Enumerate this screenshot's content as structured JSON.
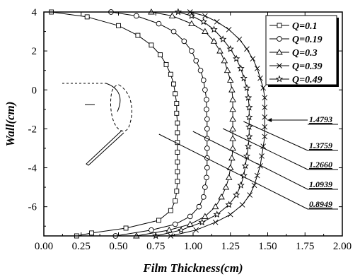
{
  "chart_data": {
    "type": "line",
    "xlabel": "Film Thickness(cm)",
    "ylabel": "Wall(cm)",
    "xlim": [
      0.0,
      2.0
    ],
    "ylim": [
      -7.5,
      4.0
    ],
    "x_ticks": [
      "0.00",
      "0.25",
      "0.50",
      "0.75",
      "1.00",
      "1.25",
      "1.50",
      "1.75",
      "2.00"
    ],
    "y_ticks": [
      "4",
      "2",
      "0",
      "-2",
      "-4",
      "-6"
    ],
    "legend_position": "top-right",
    "series": [
      {
        "name": "Q=0.1",
        "marker": "square",
        "peak": 0.8949,
        "points": [
          [
            0.05,
            4.0
          ],
          [
            0.29,
            3.75
          ],
          [
            0.5,
            3.3
          ],
          [
            0.63,
            2.8
          ],
          [
            0.72,
            2.3
          ],
          [
            0.78,
            1.8
          ],
          [
            0.82,
            1.3
          ],
          [
            0.85,
            0.8
          ],
          [
            0.87,
            0.3
          ],
          [
            0.88,
            -0.2
          ],
          [
            0.89,
            -0.7
          ],
          [
            0.89,
            -1.2
          ],
          [
            0.895,
            -1.7
          ],
          [
            0.895,
            -2.2
          ],
          [
            0.895,
            -2.7
          ],
          [
            0.895,
            -3.2
          ],
          [
            0.895,
            -3.7
          ],
          [
            0.895,
            -4.2
          ],
          [
            0.895,
            -4.7
          ],
          [
            0.89,
            -5.2
          ],
          [
            0.88,
            -5.7
          ],
          [
            0.85,
            -6.2
          ],
          [
            0.77,
            -6.7
          ],
          [
            0.55,
            -7.1
          ],
          [
            0.32,
            -7.35
          ],
          [
            0.22,
            -7.5
          ]
        ]
      },
      {
        "name": "Q=0.19",
        "marker": "circle",
        "peak": 1.0939,
        "points": [
          [
            0.45,
            4.0
          ],
          [
            0.62,
            3.8
          ],
          [
            0.77,
            3.4
          ],
          [
            0.87,
            3.0
          ],
          [
            0.94,
            2.5
          ],
          [
            0.99,
            2.0
          ],
          [
            1.02,
            1.5
          ],
          [
            1.05,
            1.0
          ],
          [
            1.07,
            0.5
          ],
          [
            1.08,
            0.0
          ],
          [
            1.09,
            -0.5
          ],
          [
            1.09,
            -1.0
          ],
          [
            1.094,
            -1.5
          ],
          [
            1.094,
            -2.0
          ],
          [
            1.094,
            -2.5
          ],
          [
            1.094,
            -3.0
          ],
          [
            1.094,
            -3.5
          ],
          [
            1.094,
            -4.0
          ],
          [
            1.09,
            -4.5
          ],
          [
            1.08,
            -5.0
          ],
          [
            1.07,
            -5.5
          ],
          [
            1.04,
            -6.0
          ],
          [
            0.98,
            -6.5
          ],
          [
            0.88,
            -6.9
          ],
          [
            0.72,
            -7.2
          ],
          [
            0.48,
            -7.5
          ]
        ]
      },
      {
        "name": "Q=0.3",
        "marker": "triangle",
        "peak": 1.266,
        "points": [
          [
            0.72,
            4.0
          ],
          [
            0.86,
            3.8
          ],
          [
            0.99,
            3.4
          ],
          [
            1.08,
            3.0
          ],
          [
            1.14,
            2.5
          ],
          [
            1.18,
            2.0
          ],
          [
            1.21,
            1.5
          ],
          [
            1.23,
            1.0
          ],
          [
            1.25,
            0.5
          ],
          [
            1.26,
            0.0
          ],
          [
            1.266,
            -0.5
          ],
          [
            1.266,
            -1.0
          ],
          [
            1.266,
            -1.5
          ],
          [
            1.266,
            -2.0
          ],
          [
            1.266,
            -2.5
          ],
          [
            1.266,
            -3.0
          ],
          [
            1.26,
            -3.5
          ],
          [
            1.25,
            -4.0
          ],
          [
            1.24,
            -4.5
          ],
          [
            1.22,
            -5.0
          ],
          [
            1.19,
            -5.5
          ],
          [
            1.15,
            -6.0
          ],
          [
            1.08,
            -6.5
          ],
          [
            0.98,
            -6.9
          ],
          [
            0.84,
            -7.2
          ],
          [
            0.62,
            -7.5
          ]
        ]
      },
      {
        "name": "Q=0.39",
        "marker": "cross",
        "peak": 1.4793,
        "points": [
          [
            0.98,
            4.0
          ],
          [
            1.08,
            3.8
          ],
          [
            1.16,
            3.5
          ],
          [
            1.24,
            3.1
          ],
          [
            1.31,
            2.6
          ],
          [
            1.36,
            2.1
          ],
          [
            1.4,
            1.6
          ],
          [
            1.43,
            1.1
          ],
          [
            1.45,
            0.6
          ],
          [
            1.47,
            0.1
          ],
          [
            1.48,
            -0.4
          ],
          [
            1.48,
            -0.9
          ],
          [
            1.48,
            -1.4
          ],
          [
            1.48,
            -1.9
          ],
          [
            1.48,
            -2.4
          ],
          [
            1.47,
            -2.9
          ],
          [
            1.46,
            -3.4
          ],
          [
            1.45,
            -3.9
          ],
          [
            1.43,
            -4.4
          ],
          [
            1.41,
            -4.9
          ],
          [
            1.38,
            -5.4
          ],
          [
            1.33,
            -5.9
          ],
          [
            1.25,
            -6.4
          ],
          [
            1.15,
            -6.8
          ],
          [
            1.02,
            -7.2
          ],
          [
            0.85,
            -7.5
          ]
        ]
      },
      {
        "name": "Q=0.49",
        "marker": "star",
        "peak": 1.3759,
        "points": [
          [
            0.9,
            4.0
          ],
          [
            0.99,
            3.8
          ],
          [
            1.07,
            3.5
          ],
          [
            1.14,
            3.1
          ],
          [
            1.2,
            2.6
          ],
          [
            1.25,
            2.1
          ],
          [
            1.29,
            1.6
          ],
          [
            1.32,
            1.1
          ],
          [
            1.34,
            0.6
          ],
          [
            1.36,
            0.1
          ],
          [
            1.37,
            -0.4
          ],
          [
            1.376,
            -0.9
          ],
          [
            1.376,
            -1.4
          ],
          [
            1.376,
            -1.9
          ],
          [
            1.376,
            -2.4
          ],
          [
            1.37,
            -2.9
          ],
          [
            1.36,
            -3.4
          ],
          [
            1.35,
            -3.9
          ],
          [
            1.34,
            -4.4
          ],
          [
            1.32,
            -4.9
          ],
          [
            1.29,
            -5.4
          ],
          [
            1.24,
            -5.9
          ],
          [
            1.16,
            -6.4
          ],
          [
            1.06,
            -6.8
          ],
          [
            0.92,
            -7.2
          ],
          [
            0.75,
            -7.5
          ]
        ]
      }
    ],
    "annotations": [
      {
        "label": "1.4793",
        "series": 3
      },
      {
        "label": "1.3759",
        "series": 4
      },
      {
        "label": "1.2660",
        "series": 2
      },
      {
        "label": "1.0939",
        "series": 1
      },
      {
        "label": "0.8949",
        "series": 0
      }
    ]
  }
}
